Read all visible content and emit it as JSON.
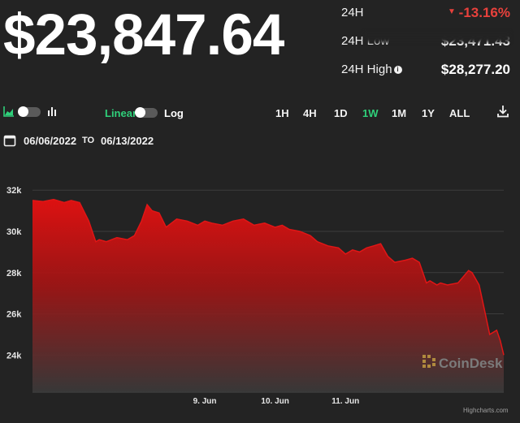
{
  "price": {
    "current": "$23,847.64"
  },
  "stats": {
    "change_label": "24H",
    "change_value": "-13.16%",
    "low_label": "24H Low",
    "low_value": "$23,471.43",
    "high_label": "24H High",
    "high_value": "$28,277.20",
    "colors": {
      "negative": "#e8413c",
      "positive": "#2fd07a"
    }
  },
  "toolbar": {
    "area_chart_icon": "area-chart-icon",
    "bar_chart_icon": "bar-chart-icon",
    "linear_label": "Linear",
    "log_label": "Log",
    "ranges": [
      "1H",
      "4H",
      "1D",
      "1W",
      "1M",
      "1Y",
      "ALL"
    ],
    "active_range": "1W",
    "download_icon": "download-icon"
  },
  "date_range": {
    "from": "06/06/2022",
    "to_label": "TO",
    "to": "06/13/2022"
  },
  "chart_data": {
    "type": "area",
    "y_ticks": [
      "32k",
      "30k",
      "28k",
      "26k",
      "24k"
    ],
    "y_tick_values": [
      32000,
      30000,
      28000,
      26000,
      24000
    ],
    "ylim": [
      22200,
      32600
    ],
    "x_ticks": [
      "9. Jun",
      "10. Jun",
      "11. Jun"
    ],
    "x_tick_values": [
      3,
      4,
      5
    ],
    "xlim": [
      0.55,
      7.25
    ],
    "series": [
      {
        "color": "#e01616",
        "x": [
          0.55,
          0.7,
          0.85,
          1.0,
          1.1,
          1.22,
          1.35,
          1.42,
          1.45,
          1.5,
          1.6,
          1.75,
          1.9,
          2.0,
          2.1,
          2.18,
          2.25,
          2.35,
          2.45,
          2.6,
          2.75,
          2.9,
          3.0,
          3.1,
          3.25,
          3.4,
          3.55,
          3.7,
          3.85,
          4.0,
          4.1,
          4.2,
          4.35,
          4.5,
          4.6,
          4.75,
          4.9,
          5.0,
          5.1,
          5.2,
          5.3,
          5.4,
          5.5,
          5.6,
          5.7,
          5.85,
          5.95,
          6.05,
          6.15,
          6.2,
          6.3,
          6.35,
          6.45,
          6.6,
          6.75,
          6.8,
          6.9,
          7.0,
          7.05,
          7.15,
          7.2,
          7.25
        ],
        "y": [
          31500,
          31450,
          31550,
          31400,
          31500,
          31400,
          30500,
          29800,
          29500,
          29600,
          29500,
          29700,
          29600,
          29800,
          30500,
          31300,
          31000,
          30900,
          30200,
          30600,
          30500,
          30300,
          30500,
          30400,
          30300,
          30500,
          30600,
          30300,
          30400,
          30200,
          30300,
          30100,
          30000,
          29800,
          29500,
          29300,
          29200,
          28900,
          29100,
          29000,
          29200,
          29300,
          29400,
          28800,
          28500,
          28600,
          28700,
          28500,
          27500,
          27600,
          27400,
          27500,
          27400,
          27500,
          28100,
          28000,
          27400,
          25800,
          25000,
          25200,
          24700,
          24000
        ]
      }
    ],
    "watermark": "CoinDesk",
    "credit": "Highcharts.com"
  }
}
